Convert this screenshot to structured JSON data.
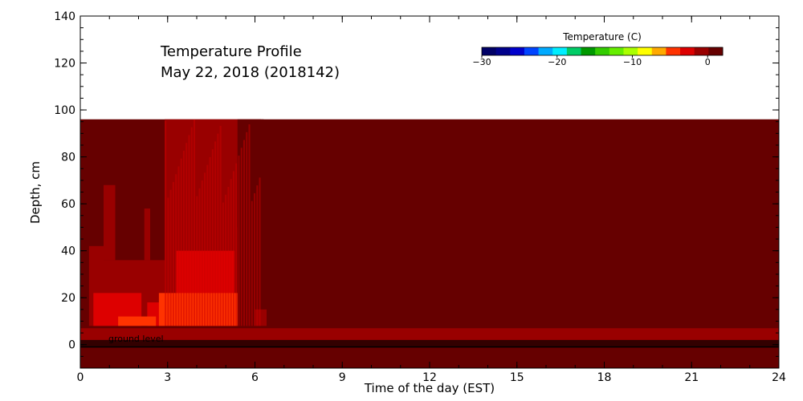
{
  "chart_data": {
    "type": "heatmap",
    "title_lines": [
      "Temperature Profile",
      "May 22, 2018 (2018142)"
    ],
    "xlabel": "Time of the day (EST)",
    "ylabel": "Depth, cm",
    "xlim": [
      0,
      24
    ],
    "ylim": [
      -10,
      140
    ],
    "xticks": [
      0,
      3,
      6,
      9,
      12,
      15,
      18,
      21,
      24
    ],
    "yticks": [
      0,
      20,
      40,
      60,
      80,
      100,
      120,
      140
    ],
    "colorbar": {
      "title": "Temperature (C)",
      "range": [
        -30,
        2
      ],
      "ticks": [
        -30,
        -20,
        -10,
        0
      ],
      "tick_labels": [
        "−30",
        "−20",
        "−10",
        "0"
      ],
      "colors": [
        "#000066",
        "#00008b",
        "#0000cc",
        "#0044ff",
        "#00aaff",
        "#00eeff",
        "#00cc66",
        "#009900",
        "#33cc00",
        "#66ee00",
        "#aaff00",
        "#ffff00",
        "#ffaa00",
        "#ff3300",
        "#dd0000",
        "#990000",
        "#660000"
      ]
    },
    "annotations": [
      "ground level"
    ],
    "sensor_top_depth": 96,
    "ground_band": {
      "range": [
        0,
        7
      ],
      "temperature": 0
    },
    "background_temperature": 2,
    "heat_patches": [
      {
        "t_start": 0.3,
        "t_end": 0.8,
        "depth": [
          8,
          42
        ],
        "temperature": 0
      },
      {
        "t_start": 0.8,
        "t_end": 2.9,
        "depth": [
          8,
          36
        ],
        "temperature": 0
      },
      {
        "t_start": 0.8,
        "t_end": 1.2,
        "depth": [
          36,
          68
        ],
        "temperature": 0
      },
      {
        "t_start": 2.2,
        "t_end": 2.4,
        "depth": [
          36,
          58
        ],
        "temperature": 0
      },
      {
        "t_start": 2.9,
        "t_end": 6.2,
        "depth": [
          8,
          96
        ],
        "temperature": 0
      },
      {
        "t_start": 5.4,
        "t_end": 6.3,
        "depth": [
          8,
          96
        ],
        "temperature": 1
      },
      {
        "t_start": 6.0,
        "t_end": 6.4,
        "depth": [
          8,
          15
        ],
        "temperature": 0
      },
      {
        "t_start": 0.4,
        "t_end": 5.4,
        "depth": [
          8,
          27
        ],
        "temperature": -1
      },
      {
        "t_start": 3.0,
        "t_end": 5.4,
        "depth": [
          27,
          50
        ],
        "temperature": -1
      },
      {
        "t_start": 0.45,
        "t_end": 2.1,
        "depth": [
          8,
          22
        ],
        "temperature": -2
      },
      {
        "t_start": 3.3,
        "t_end": 5.3,
        "depth": [
          8,
          40
        ],
        "temperature": -2
      },
      {
        "t_start": 2.3,
        "t_end": 2.9,
        "depth": [
          8,
          18
        ],
        "temperature": -2
      },
      {
        "t_start": 1.3,
        "t_end": 2.6,
        "depth": [
          8,
          12
        ],
        "temperature": -5
      },
      {
        "t_start": 2.7,
        "t_end": 5.4,
        "depth": [
          8,
          22
        ],
        "temperature": -5
      }
    ]
  }
}
